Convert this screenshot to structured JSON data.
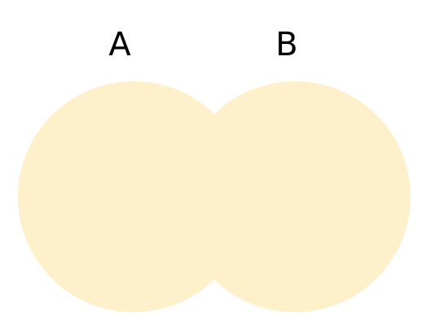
{
  "diagram": {
    "type": "venn",
    "fill_color": "#FFF0CC",
    "text_color": "#000000",
    "sets": [
      {
        "label": "A"
      },
      {
        "label": "B"
      }
    ]
  }
}
